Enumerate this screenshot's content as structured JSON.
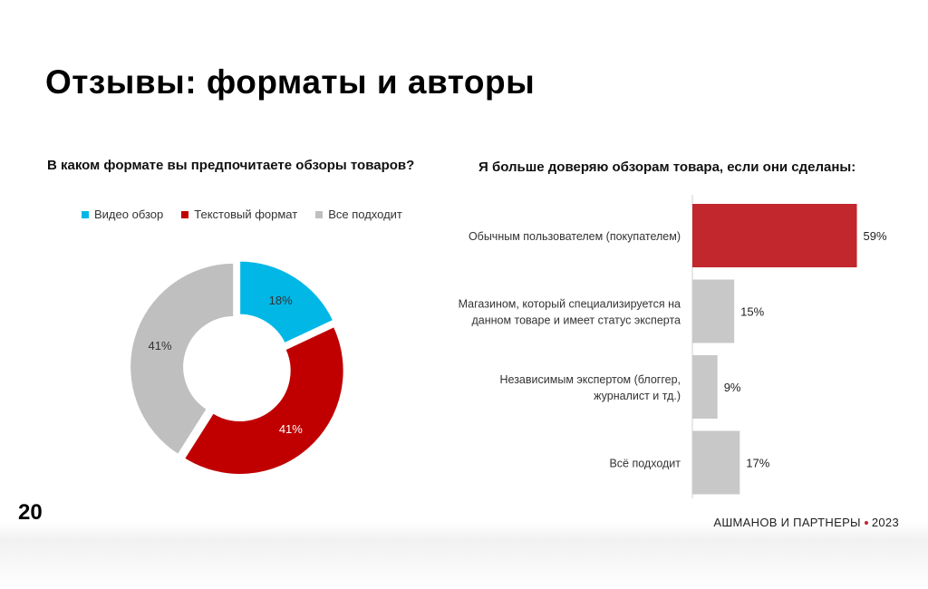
{
  "slide": {
    "title": "Отзывы: форматы и авторы",
    "page_number": "20",
    "brand": "АШМАНОВ И ПАРТНЕРЫ",
    "year": "2023",
    "brand_dot_color": "#c1272d"
  },
  "chart_data": [
    {
      "type": "pie",
      "variant": "donut",
      "title": "В каком формате вы предпочитаете обзоры товаров?",
      "legend_position": "top",
      "categories": [
        "Видео обзор",
        "Текстовый формат",
        "Все подходит"
      ],
      "values": [
        18,
        41,
        41
      ],
      "labels": [
        "18%",
        "41%",
        "41%"
      ],
      "colors": [
        "#00b7e6",
        "#c00000",
        "#bfbfbf"
      ],
      "label_colors": [
        "#333333",
        "#ffffff",
        "#333333"
      ]
    },
    {
      "type": "bar",
      "orientation": "horizontal",
      "title": "Я больше доверяю обзорам товара, если они сделаны:",
      "categories": [
        [
          "Обычным пользователем (покупателем)"
        ],
        [
          "Магазином, который специализируется на",
          "данном товаре и имеет статус эксперта"
        ],
        [
          "Независимым экспертом (блоггер,",
          "журналист и тд.)"
        ],
        [
          "Всё подходит"
        ]
      ],
      "values": [
        59,
        15,
        9,
        17
      ],
      "labels": [
        "59%",
        "15%",
        "9%",
        "17%"
      ],
      "colors": [
        "#c1272d",
        "#c8c8c8",
        "#c8c8c8",
        "#c8c8c8"
      ],
      "xlim": [
        0,
        65
      ]
    }
  ]
}
